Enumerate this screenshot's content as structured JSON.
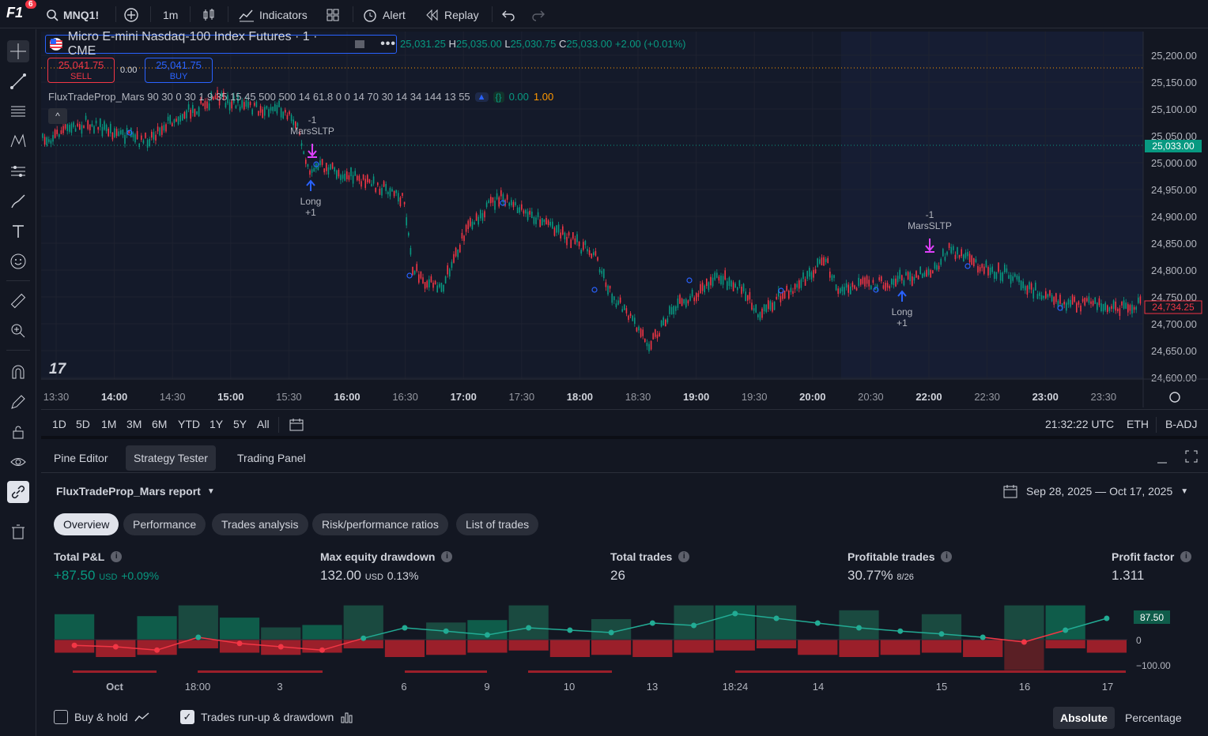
{
  "topbar": {
    "logo": "F1",
    "notif_count": "6",
    "symbol": "MNQ1!",
    "interval": "1m",
    "indicators": "Indicators",
    "alert": "Alert",
    "replay": "Replay"
  },
  "legend": {
    "symbol_title": "Micro E-mini Nasdaq-100 Index Futures · 1 · CME",
    "o_label": "",
    "o_value": "25,031.25",
    "h_label": "H",
    "h_value": "25,035.00",
    "l_label": "L",
    "l_value": "25,030.75",
    "c_label": "C",
    "c_value": "25,033.00",
    "change": "+2.00 (+0.01%)"
  },
  "trade_buttons": {
    "sell_price": "25,041.75",
    "sell_label": "SELL",
    "spread": "0.00",
    "buy_price": "25,041.75",
    "buy_label": "BUY"
  },
  "indicator": {
    "line": "FluxTradeProp_Mars 90 30 0 30 1 9 35 15 45 500 500 14 61.8 0 0 14 70 30 14 34 144 13 55",
    "val1": "0.00",
    "val2": "1.00"
  },
  "price_axis": {
    "ticks": [
      "25,200.00",
      "25,150.00",
      "25,100.00",
      "25,050.00",
      "25,000.00",
      "24,950.00",
      "24,900.00",
      "24,850.00",
      "24,800.00",
      "24,750.00",
      "24,700.00",
      "24,650.00",
      "24,600.00"
    ],
    "last_price": "25,033.00",
    "current_price": "24,734.25"
  },
  "time_axis": {
    "labels": [
      "13:30",
      "14:00",
      "14:30",
      "15:00",
      "15:30",
      "16:00",
      "16:30",
      "17:00",
      "17:30",
      "18:00",
      "18:30",
      "19:00",
      "19:30",
      "20:00",
      "20:30",
      "22:00",
      "22:30",
      "23:00",
      "23:30"
    ]
  },
  "annotations": {
    "sl1_qty": "-1",
    "sl1_name": "MarsSLTP",
    "long1_name": "Long",
    "long1_qty": "+1",
    "sl2_qty": "-1",
    "sl2_name": "MarsSLTP",
    "long2_name": "Long",
    "long2_qty": "+1"
  },
  "ranges": [
    "1D",
    "5D",
    "1M",
    "3M",
    "6M",
    "YTD",
    "1Y",
    "5Y",
    "All"
  ],
  "status": {
    "clock": "21:32:22 UTC",
    "session": "ETH",
    "adj": "B-ADJ"
  },
  "panel": {
    "tabs": [
      "Pine Editor",
      "Strategy Tester",
      "Trading Panel"
    ],
    "report_title": "FluxTradeProp_Mars report",
    "date_range": "Sep 28, 2025 — Oct 17, 2025",
    "subtabs": [
      "Overview",
      "Performance",
      "Trades analysis",
      "Risk/performance ratios",
      "List of trades"
    ]
  },
  "stats": {
    "pnl_label": "Total P&L",
    "pnl_value": "+87.50",
    "pnl_unit": "USD",
    "pnl_pct": "+0.09%",
    "dd_label": "Max equity drawdown",
    "dd_value": "132.00",
    "dd_unit": "USD",
    "dd_pct": "0.13%",
    "trades_label": "Total trades",
    "trades_value": "26",
    "prof_label": "Profitable trades",
    "prof_value": "30.77%",
    "prof_sub": "8/26",
    "pf_label": "Profit factor",
    "pf_value": "1.311"
  },
  "chart_data": {
    "type": "bar",
    "title": "",
    "x_labels": [
      "Oct",
      "18:00",
      "3",
      "6",
      "9",
      "10",
      "13",
      "18:24",
      "14",
      "15",
      "16",
      "17"
    ],
    "y_ticks": [
      "87.50",
      "0",
      "−100.00"
    ],
    "equity": [
      -12,
      -15,
      -22,
      5,
      -8,
      -15,
      -22,
      3,
      25,
      18,
      10,
      25,
      20,
      15,
      35,
      30,
      55,
      45,
      35,
      25,
      18,
      12,
      5,
      -5,
      20,
      45
    ],
    "runup": [
      52,
      0,
      48,
      70,
      45,
      25,
      30,
      70,
      0,
      35,
      40,
      70,
      0,
      42,
      0,
      70,
      70,
      70,
      0,
      60,
      0,
      52,
      0,
      70,
      70,
      0
    ],
    "drawdown": [
      30,
      40,
      35,
      20,
      30,
      35,
      30,
      20,
      40,
      35,
      30,
      25,
      40,
      35,
      40,
      30,
      25,
      20,
      35,
      40,
      35,
      30,
      40,
      70,
      20,
      30
    ],
    "legend": [
      "Buy & hold",
      "Trades run-up & drawdown"
    ],
    "modes": [
      "Absolute",
      "Percentage"
    ]
  }
}
